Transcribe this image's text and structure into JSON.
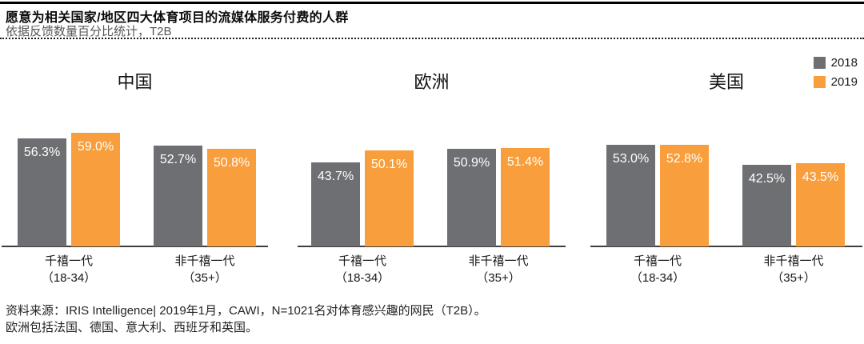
{
  "header": {
    "title": "愿意为相关国家/地区四大体育项目的流媒体服务付费的人群",
    "subtitle": "依据反馈数量百分比统计，T2B"
  },
  "legend": [
    {
      "label": "2018",
      "color": "#6E6F72"
    },
    {
      "label": "2019",
      "color": "#F89E3C"
    }
  ],
  "colors": {
    "series_2018": "#6E6F72",
    "series_2019": "#F89E3C",
    "axis": "#3f3f3f",
    "bar_label_text": "#ffffff"
  },
  "chart_data": {
    "type": "bar",
    "title": "愿意为相关国家/地区四大体育项目的流媒体服务付费的人群",
    "subtitle": "依据反馈数量百分比统计，T2B",
    "unit": "percent",
    "ylim": [
      0,
      65
    ],
    "yaxis_visible": false,
    "grid": false,
    "legend_position": "top-right",
    "data_labels": true,
    "series_names": [
      "2018",
      "2019"
    ],
    "groups": [
      {
        "title": "中国",
        "categories": [
          {
            "line1": "千禧一代",
            "line2": "（18-34）"
          },
          {
            "line1": "非千禧一代",
            "line2": "（35+）"
          }
        ],
        "series": [
          {
            "name": "2018",
            "values": [
              56.3,
              52.7
            ],
            "labels": [
              "56.3%",
              "52.7%"
            ]
          },
          {
            "name": "2019",
            "values": [
              59.0,
              50.8
            ],
            "labels": [
              "59.0%",
              "50.8%"
            ]
          }
        ]
      },
      {
        "title": "欧洲",
        "categories": [
          {
            "line1": "千禧一代",
            "line2": "（18-34）"
          },
          {
            "line1": "非千禧一代",
            "line2": "（35+）"
          }
        ],
        "series": [
          {
            "name": "2018",
            "values": [
              43.7,
              50.9
            ],
            "labels": [
              "43.7%",
              "50.9%"
            ]
          },
          {
            "name": "2019",
            "values": [
              50.1,
              51.4
            ],
            "labels": [
              "50.1%",
              "51.4%"
            ]
          }
        ]
      },
      {
        "title": "美国",
        "categories": [
          {
            "line1": "千禧一代",
            "line2": "（18-34）"
          },
          {
            "line1": "非千禧一代",
            "line2": "（35+）"
          }
        ],
        "series": [
          {
            "name": "2018",
            "values": [
              53.0,
              42.5
            ],
            "labels": [
              "53.0%",
              "42.5%"
            ]
          },
          {
            "name": "2019",
            "values": [
              52.8,
              43.5
            ],
            "labels": [
              "52.8%",
              "43.5%"
            ]
          }
        ]
      }
    ]
  },
  "footer": {
    "source_line1": "资料来源：IRIS Intelligence| 2019年1月，CAWI，N=1021名对体育感兴趣的网民（T2B）。",
    "source_line2": "欧洲包括法国、德国、意大利、西班牙和英国。"
  }
}
